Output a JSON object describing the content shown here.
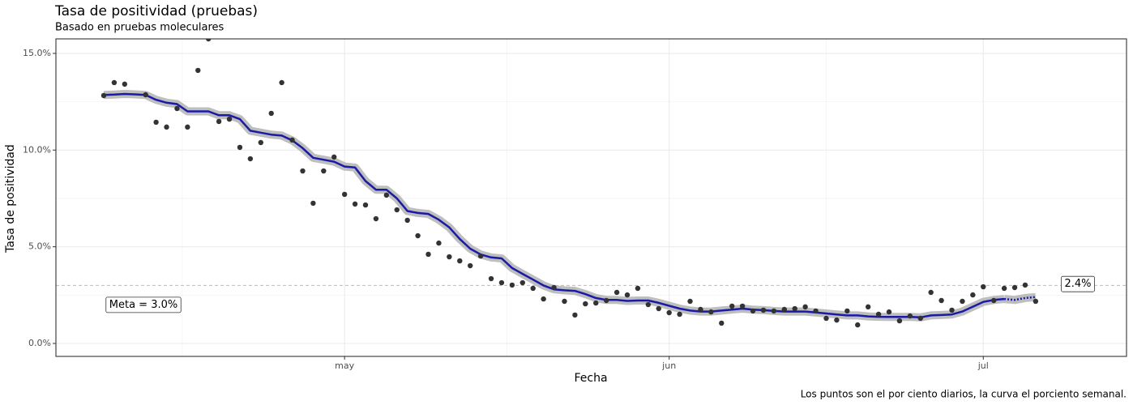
{
  "chart_data": {
    "type": "line",
    "title": "Tasa de positividad (pruebas)",
    "subtitle": "Basado en pruebas moleculares",
    "x_label": "Fecha",
    "y_label": "Tasa de positividad",
    "caption": "Los puntos son el por ciento diarios, la curva el porciento semanal.",
    "categories": [
      null,
      null,
      null,
      null,
      null,
      null,
      null,
      null,
      null,
      null,
      null,
      null,
      null,
      null,
      null,
      null,
      null,
      null,
      null,
      null,
      null,
      null,
      null,
      "may",
      null,
      null,
      null,
      null,
      null,
      null,
      null,
      null,
      null,
      null,
      null,
      null,
      null,
      null,
      null,
      null,
      null,
      null,
      null,
      null,
      null,
      null,
      null,
      null,
      null,
      null,
      null,
      null,
      null,
      null,
      "jun",
      null,
      null,
      null,
      null,
      null,
      null,
      null,
      null,
      null,
      null,
      null,
      null,
      null,
      null,
      null,
      null,
      null,
      null,
      null,
      null,
      null,
      null,
      null,
      null,
      null,
      null,
      null,
      null,
      null,
      "jul",
      null,
      null,
      null,
      null,
      null
    ],
    "series": [
      {
        "style": "points",
        "color": "#333333",
        "values": [
          12.82,
          13.49,
          13.41,
          null,
          12.86,
          11.44,
          11.19,
          12.15,
          11.19,
          14.12,
          15.75,
          11.48,
          11.6,
          10.14,
          9.55,
          10.39,
          11.9,
          13.49,
          10.52,
          8.92,
          7.25,
          8.92,
          9.64,
          7.71,
          7.21,
          7.16,
          6.45,
          7.67,
          6.91,
          6.37,
          5.57,
          4.61,
          5.19,
          4.48,
          4.27,
          4.02,
          4.52,
          3.35,
          3.14,
          3.02,
          3.14,
          2.85,
          2.3,
          2.89,
          2.18,
          1.47,
          2.05,
          2.09,
          2.22,
          2.64,
          2.51,
          2.85,
          2.01,
          1.8,
          1.59,
          1.51,
          2.18,
          1.76,
          1.63,
          1.05,
          1.93,
          1.93,
          1.68,
          1.72,
          1.68,
          1.76,
          1.8,
          1.89,
          1.68,
          1.3,
          1.21,
          1.68,
          0.96,
          1.89,
          1.51,
          1.63,
          1.17,
          1.42,
          1.3,
          2.64,
          2.22,
          1.72,
          2.18,
          2.51,
          2.93,
          2.22,
          2.85,
          2.89,
          3.02,
          2.18
        ]
      },
      {
        "style": "line",
        "color": "#1a1aa6",
        "values": [
          12.85,
          12.87,
          12.9,
          12.88,
          12.85,
          12.6,
          12.45,
          12.38,
          12.0,
          12.0,
          12.0,
          11.8,
          11.8,
          11.6,
          11.0,
          10.9,
          10.8,
          10.75,
          10.5,
          10.1,
          9.6,
          9.5,
          9.4,
          9.15,
          9.1,
          8.4,
          7.95,
          7.95,
          7.5,
          6.85,
          6.75,
          6.7,
          6.4,
          6.0,
          5.4,
          4.9,
          4.6,
          4.45,
          4.4,
          3.9,
          3.6,
          3.3,
          3.0,
          2.8,
          2.75,
          2.72,
          2.55,
          2.35,
          2.25,
          2.25,
          2.2,
          2.22,
          2.22,
          2.1,
          1.95,
          1.8,
          1.7,
          1.65,
          1.65,
          1.7,
          1.75,
          1.8,
          1.75,
          1.72,
          1.68,
          1.65,
          1.65,
          1.65,
          1.6,
          1.55,
          1.5,
          1.45,
          1.45,
          1.4,
          1.38,
          1.37,
          1.37,
          1.37,
          1.35,
          1.45,
          1.47,
          1.5,
          1.65,
          1.9,
          2.15,
          2.25,
          2.3,
          null,
          null,
          null
        ]
      },
      {
        "style": "dotted",
        "color": "#1a1aa6",
        "values": [
          null,
          null,
          null,
          null,
          null,
          null,
          null,
          null,
          null,
          null,
          null,
          null,
          null,
          null,
          null,
          null,
          null,
          null,
          null,
          null,
          null,
          null,
          null,
          null,
          null,
          null,
          null,
          null,
          null,
          null,
          null,
          null,
          null,
          null,
          null,
          null,
          null,
          null,
          null,
          null,
          null,
          null,
          null,
          null,
          null,
          null,
          null,
          null,
          null,
          null,
          null,
          null,
          null,
          null,
          null,
          null,
          null,
          null,
          null,
          null,
          null,
          null,
          null,
          null,
          null,
          null,
          null,
          null,
          null,
          null,
          null,
          null,
          null,
          null,
          null,
          null,
          null,
          null,
          null,
          null,
          null,
          null,
          null,
          null,
          null,
          null,
          2.3,
          2.25,
          2.35,
          2.4
        ]
      }
    ],
    "ylim": [
      -0.67,
      15.75
    ],
    "yticks": [
      {
        "value": 0,
        "label": "0.0%"
      },
      {
        "value": 5,
        "label": "5.0%"
      },
      {
        "value": 10,
        "label": "10.0%"
      },
      {
        "value": 15,
        "label": "15.0%"
      }
    ],
    "grid": true,
    "reference_line": {
      "value": 3,
      "label": "Meta = 3.0%"
    },
    "end_label": {
      "value": 2.4,
      "label": "2.4%"
    }
  }
}
